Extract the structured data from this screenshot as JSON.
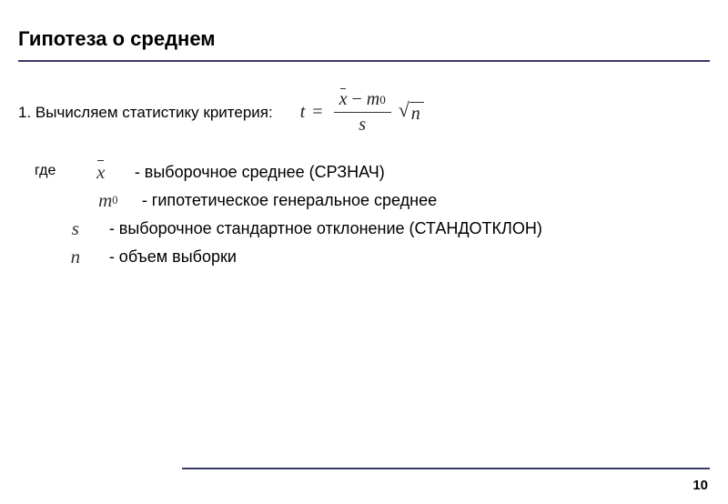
{
  "title": "Гипотеза о среднем",
  "step": {
    "text": "1. Вычисляем статистику критерия:"
  },
  "formula": {
    "lhs": "t",
    "num_left": "x",
    "num_op": "−",
    "num_right_base": "m",
    "num_right_sub": "0",
    "den": "s",
    "sqrt_arg": "n"
  },
  "where_label": "где",
  "definitions": [
    {
      "symbol_type": "xbar",
      "symbol": "x",
      "text": "- выборочное среднее (СРЗНАЧ)"
    },
    {
      "symbol_type": "m0",
      "symbol_base": "m",
      "symbol_sub": "0",
      "text": "- гипотетическое генеральное среднее"
    },
    {
      "symbol_type": "plain",
      "symbol": "s",
      "text": "- выборочное стандартное отклонение (СТАНДОТКЛОН)"
    },
    {
      "symbol_type": "plain",
      "symbol": "n",
      "text": "- объем выборки"
    }
  ],
  "page_number": "10",
  "colors": {
    "hr": "#3a3a6a",
    "text": "#000000",
    "bg": "#ffffff"
  }
}
